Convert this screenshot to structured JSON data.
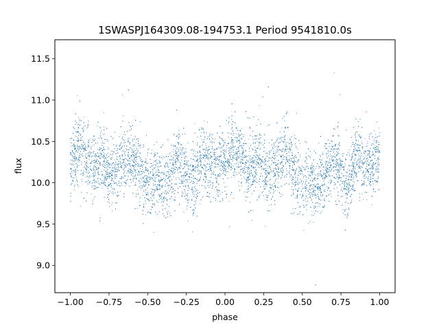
{
  "chart_data": {
    "type": "scatter",
    "title": "1SWASPJ164309.08-194753.1 Period 9541810.0s",
    "xlabel": "phase",
    "ylabel": "flux",
    "xlim": [
      -1.1,
      1.1
    ],
    "ylim": [
      8.67,
      11.73
    ],
    "xticks": [
      -1.0,
      -0.75,
      -0.5,
      -0.25,
      0.0,
      0.25,
      0.5,
      0.75,
      1.0
    ],
    "xtick_labels": [
      "−1.00",
      "−0.75",
      "−0.50",
      "−0.25",
      "0.00",
      "0.25",
      "0.50",
      "0.75",
      "1.00"
    ],
    "yticks": [
      9.0,
      9.5,
      10.0,
      10.5,
      11.0,
      11.5
    ],
    "ytick_labels": [
      "9.0",
      "9.5",
      "10.0",
      "10.5",
      "11.0",
      "11.5"
    ],
    "grid": false,
    "marker_color": "#1f77b4",
    "series": [
      {
        "x_range": [
          -1.0,
          1.0
        ],
        "folded": true,
        "trend": {
          "phase": [
            0.0,
            0.05,
            0.1,
            0.15,
            0.2,
            0.25,
            0.3,
            0.35,
            0.4,
            0.45,
            0.5,
            0.55,
            0.6,
            0.65,
            0.7,
            0.75,
            0.8,
            0.85,
            0.9,
            0.95,
            1.0
          ],
          "flux": [
            10.22,
            10.42,
            10.3,
            10.15,
            10.3,
            10.15,
            10.12,
            10.3,
            10.35,
            10.1,
            10.02,
            10.05,
            9.95,
            10.1,
            10.3,
            10.08,
            10.02,
            10.28,
            10.2,
            10.18,
            10.35
          ]
        },
        "scatter_sd": 0.2,
        "point_count": 9000
      }
    ]
  }
}
